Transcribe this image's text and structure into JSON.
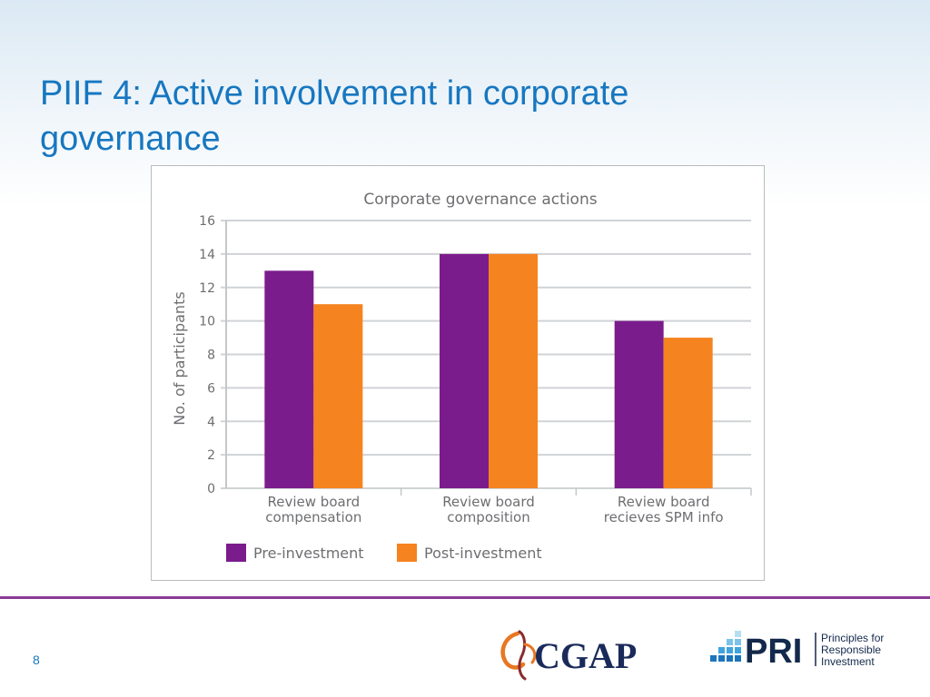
{
  "slide": {
    "title_line1": "PIIF 4: Active involvement in corporate",
    "title_line2": "governance",
    "page_number": "8"
  },
  "logos": {
    "cgap": "CGAP",
    "pri": "PRI",
    "pri_tagline": [
      "Principles for",
      "Responsible",
      "Investment"
    ]
  },
  "colors": {
    "title": "#1777c0",
    "pre_investment": "#7b1c8c",
    "post_investment": "#f58320",
    "divider": "#8b3a97",
    "grid": "#d0d3d6"
  },
  "chart_data": {
    "type": "bar",
    "title": "Corporate governance actions",
    "xlabel": "",
    "ylabel": "No. of participants",
    "ylim": [
      0,
      16
    ],
    "yticks": [
      0,
      2,
      4,
      6,
      8,
      10,
      12,
      14,
      16
    ],
    "grid": true,
    "legend_position": "bottom",
    "categories": [
      [
        "Review board",
        "compensation"
      ],
      [
        "Review board",
        "composition"
      ],
      [
        "Review board",
        "recieves SPM info"
      ]
    ],
    "series": [
      {
        "name": "Pre-investment",
        "color": "#7b1c8c",
        "values": [
          13,
          14,
          10
        ]
      },
      {
        "name": "Post-investment",
        "color": "#f58320",
        "values": [
          11,
          14,
          9
        ]
      }
    ]
  }
}
